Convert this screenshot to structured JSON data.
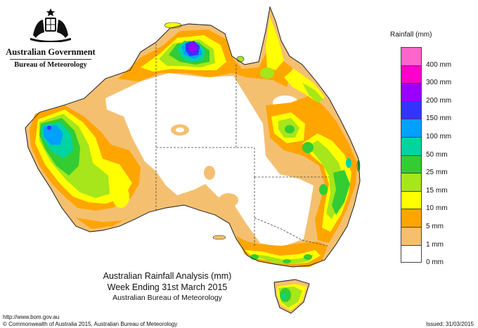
{
  "header": {
    "government": "Australian Government",
    "bureau": "Bureau of Meteorology"
  },
  "title": {
    "line1": "Australian Rainfall Analysis (mm)",
    "line2": "Week Ending 31st March 2015",
    "line3": "Australian Bureau of Meteorology"
  },
  "legend": {
    "title": "Rainfall (mm)",
    "items": [
      {
        "label": "",
        "color": "#ff66cc"
      },
      {
        "label": "400 mm",
        "color": "#ff00cc"
      },
      {
        "label": "300 mm",
        "color": "#9900ff"
      },
      {
        "label": "200 mm",
        "color": "#3333ff"
      },
      {
        "label": "150 mm",
        "color": "#00a0ff"
      },
      {
        "label": "100 mm",
        "color": "#00d4a0"
      },
      {
        "label": "50 mm",
        "color": "#33cc33"
      },
      {
        "label": "25 mm",
        "color": "#a6e61a"
      },
      {
        "label": "15 mm",
        "color": "#ffff00"
      },
      {
        "label": "10 mm",
        "color": "#ffa500"
      },
      {
        "label": "5 mm",
        "color": "#f4c070"
      },
      {
        "label": "1 mm",
        "color": "#ffffff"
      },
      {
        "label": "0 mm",
        "color": ""
      }
    ]
  },
  "footer": {
    "url": "http://www.bom.gov.au",
    "copyright": "© Commonwealth of Australia 2015, Australian Bureau of Meteorology",
    "issued": "Issued: 31/03/2015"
  }
}
